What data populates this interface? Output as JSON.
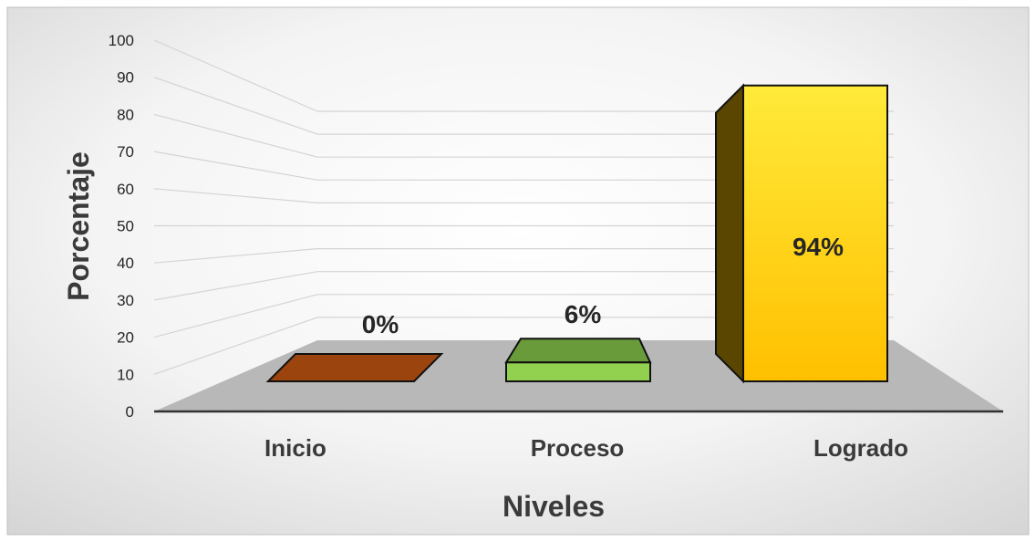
{
  "chart_data": {
    "type": "bar",
    "categories": [
      "Inicio",
      "Proceso",
      "Logrado"
    ],
    "values": [
      0,
      6,
      94
    ],
    "data_labels": [
      "0%",
      "6%",
      "94%"
    ],
    "xlabel": "Niveles",
    "ylabel": "Porcentaje",
    "ylim": [
      0,
      100
    ],
    "yticks": [
      0,
      10,
      20,
      30,
      40,
      50,
      60,
      70,
      80,
      90,
      100
    ],
    "grid": true,
    "style": "3d-perspective",
    "bar_colors": [
      "#8B3A0E",
      "#6AA03A",
      "#FFD21F"
    ]
  }
}
